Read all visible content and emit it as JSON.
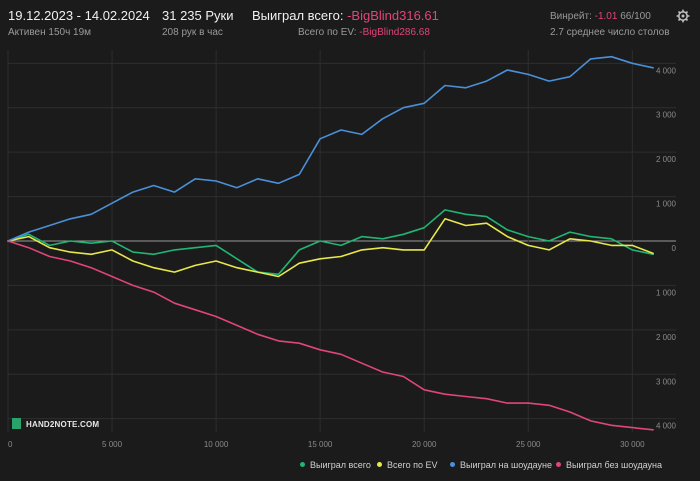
{
  "header": {
    "date_range": "19.12.2023 - 14.02.2024",
    "active": "Активен 150ч 19м",
    "hands": "31 235 Руки",
    "hands_per_hour": "208 рук в час",
    "won_total_label": "Выиграл всего:",
    "won_total_value": "-BigBlind316.61",
    "ev_label": "Всего по EV:",
    "ev_value": "-BigBlind286.68",
    "winrate_label": "Винрейт:",
    "winrate_value": "-1.01",
    "winrate_suffix": "66/100",
    "tables": "2.7 среднее число столов"
  },
  "logo": "HAND2NOTE.COM",
  "colors": {
    "won_total": "#21b573",
    "ev": "#e8e84a",
    "showdown": "#4a90d9",
    "non_showdown": "#e0457b"
  },
  "chart_data": {
    "type": "line",
    "xlim": [
      0,
      31235
    ],
    "ylim": [
      -4300,
      4300
    ],
    "x_ticks": [
      0,
      5000,
      10000,
      15000,
      20000,
      25000,
      30000
    ],
    "x_tick_labels": [
      "0",
      "5 000",
      "10 000",
      "15 000",
      "20 000",
      "25 000",
      "30 000"
    ],
    "y_ticks": [
      4000,
      3000,
      2000,
      1000,
      0,
      -1000,
      -2000,
      -3000,
      -4000
    ],
    "y_tick_labels": [
      "4 000",
      "3 000",
      "2 000",
      "1 000",
      "0",
      "1 000",
      "2 000",
      "3 000",
      "4 000"
    ],
    "grid": true,
    "legend": "bottom-right",
    "series": [
      {
        "name": "Выиграл всего",
        "color": "#21b573",
        "x": [
          0,
          1000,
          2000,
          3000,
          4000,
          5000,
          6000,
          7000,
          8000,
          9000,
          10000,
          11000,
          12000,
          13000,
          14000,
          15000,
          16000,
          17000,
          18000,
          19000,
          20000,
          21000,
          22000,
          23000,
          24000,
          25000,
          26000,
          27000,
          28000,
          29000,
          30000,
          31000
        ],
        "y": [
          0,
          150,
          -100,
          0,
          -50,
          0,
          -250,
          -300,
          -200,
          -150,
          -100,
          -400,
          -700,
          -750,
          -200,
          0,
          -100,
          100,
          50,
          150,
          300,
          700,
          600,
          550,
          250,
          100,
          0,
          200,
          100,
          50,
          -200,
          -300
        ]
      },
      {
        "name": "Всего по EV",
        "color": "#e8e84a",
        "x": [
          0,
          1000,
          2000,
          3000,
          4000,
          5000,
          6000,
          7000,
          8000,
          9000,
          10000,
          11000,
          12000,
          13000,
          14000,
          15000,
          16000,
          17000,
          18000,
          19000,
          20000,
          21000,
          22000,
          23000,
          24000,
          25000,
          26000,
          27000,
          28000,
          29000,
          30000,
          31000
        ],
        "y": [
          0,
          100,
          -150,
          -250,
          -300,
          -200,
          -450,
          -600,
          -700,
          -550,
          -450,
          -600,
          -700,
          -800,
          -500,
          -400,
          -350,
          -200,
          -150,
          -200,
          -200,
          500,
          350,
          400,
          100,
          -100,
          -200,
          50,
          0,
          -100,
          -100,
          -280
        ]
      },
      {
        "name": "Выиграл на шоудауне",
        "color": "#4a90d9",
        "x": [
          0,
          1000,
          2000,
          3000,
          4000,
          5000,
          6000,
          7000,
          8000,
          9000,
          10000,
          11000,
          12000,
          13000,
          14000,
          15000,
          16000,
          17000,
          18000,
          19000,
          20000,
          21000,
          22000,
          23000,
          24000,
          25000,
          26000,
          27000,
          28000,
          29000,
          30000,
          31000
        ],
        "y": [
          0,
          200,
          350,
          500,
          600,
          850,
          1100,
          1250,
          1100,
          1400,
          1350,
          1200,
          1400,
          1300,
          1500,
          2300,
          2500,
          2400,
          2750,
          3000,
          3100,
          3500,
          3450,
          3600,
          3850,
          3750,
          3600,
          3700,
          4100,
          4150,
          4000,
          3900
        ]
      },
      {
        "name": "Выиграл без шоудауна",
        "color": "#e0457b",
        "x": [
          0,
          1000,
          2000,
          3000,
          4000,
          5000,
          6000,
          7000,
          8000,
          9000,
          10000,
          11000,
          12000,
          13000,
          14000,
          15000,
          16000,
          17000,
          18000,
          19000,
          20000,
          21000,
          22000,
          23000,
          24000,
          25000,
          26000,
          27000,
          28000,
          29000,
          30000,
          31000
        ],
        "y": [
          0,
          -150,
          -350,
          -450,
          -600,
          -800,
          -1000,
          -1150,
          -1400,
          -1550,
          -1700,
          -1900,
          -2100,
          -2250,
          -2300,
          -2450,
          -2550,
          -2750,
          -2950,
          -3050,
          -3350,
          -3450,
          -3500,
          -3550,
          -3650,
          -3650,
          -3700,
          -3850,
          -4050,
          -4150,
          -4200,
          -4250
        ]
      }
    ]
  }
}
